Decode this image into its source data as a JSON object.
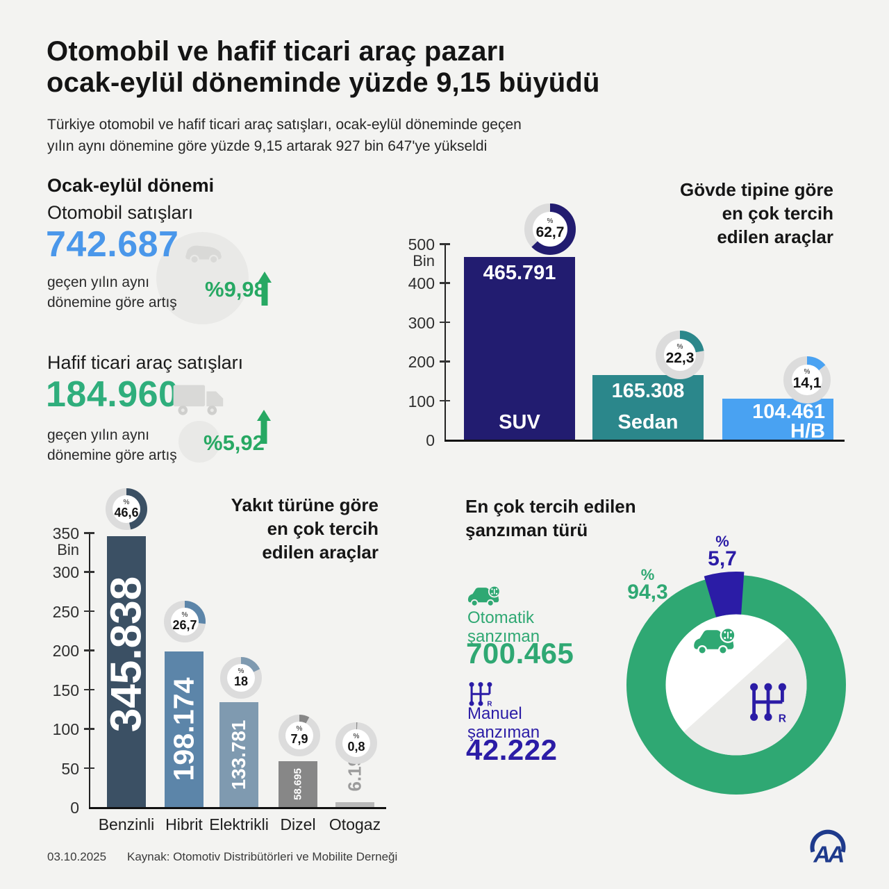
{
  "header": {
    "title_lines": [
      "Otomobil ve hafif ticari araç pazarı",
      "ocak-eylül döneminde yüzde 9,15 büyüdü"
    ],
    "subtitle_lines": [
      "Türkiye otomobil ve hafif ticari araç satışları, ocak-eylül döneminde geçen",
      "yılın aynı dönemine göre yüzde 9,15 artarak 927 bin 647'ye yükseldi"
    ]
  },
  "period": {
    "heading": "Ocak-eylül dönemi",
    "auto": {
      "label": "Otomobil satışları",
      "value": "742.687",
      "value_color": "#4a97ea",
      "note1": "geçen yılın aynı",
      "note2": "dönemine göre artış",
      "change": "%9,98"
    },
    "lcv": {
      "label": "Hafif ticari araç satışları",
      "value": "184.960",
      "value_color": "#2fae7c",
      "note1": "geçen yılın aynı",
      "note2": "dönemine göre artış",
      "change": "%5,92"
    }
  },
  "transmission": {
    "heading_lines": [
      "En çok tercih edilen",
      "şanzıman türü"
    ],
    "automatic": {
      "label1": "Otomatik",
      "label2": "şanzıman",
      "value": "700.465",
      "percent": "94,3",
      "color": "#2fa873"
    },
    "manual": {
      "label1": "Manuel",
      "label2": "şanzıman",
      "value": "42.222",
      "percent": "5,7",
      "color": "#2b1ca6"
    },
    "percent_symbol": "%"
  },
  "footer": {
    "date": "03.10.2025",
    "source": "Kaynak: Otomotiv Distribütörleri ve Mobilite Derneği"
  },
  "chart_data": [
    {
      "type": "bar",
      "title_lines": [
        "Gövde tipine göre",
        "en çok tercih",
        "edilen araçlar"
      ],
      "unit": "Bin",
      "percent_symbol": "%",
      "categories": [
        "SUV",
        "Sedan",
        "H/B"
      ],
      "values": [
        465791,
        165308,
        104461
      ],
      "value_labels": [
        "465.791",
        "165.308",
        "104.461"
      ],
      "percents": [
        62.7,
        22.3,
        14.1
      ],
      "percent_labels": [
        "62,7",
        "22,3",
        "14,1"
      ],
      "colors": [
        "#221c70",
        "#2b878b",
        "#49a2f2"
      ],
      "ylim": [
        0,
        500000
      ],
      "yticks": [
        "0",
        "100",
        "200",
        "300",
        "400",
        "500"
      ]
    },
    {
      "type": "bar",
      "title_lines": [
        "Yakıt türüne göre",
        "en çok tercih",
        "edilen araçlar"
      ],
      "unit": "Bin",
      "percent_symbol": "%",
      "categories": [
        "Benzinli",
        "Hibrit",
        "Elektrikli",
        "Dizel",
        "Otogaz"
      ],
      "values": [
        345838,
        198174,
        133781,
        58695,
        6199
      ],
      "value_labels": [
        "345.838",
        "198.174",
        "133.781",
        "58.695",
        "6.199"
      ],
      "percents": [
        46.6,
        26.7,
        18,
        7.9,
        0.8
      ],
      "percent_labels": [
        "46,6",
        "26,7",
        "18",
        "7,9",
        "0,8"
      ],
      "colors": [
        "#3b5064",
        "#5c85a9",
        "#7f9ab0",
        "#878787",
        "#b9b9b9"
      ],
      "ylim": [
        0,
        350000
      ],
      "yticks": [
        "0",
        "50",
        "100",
        "150",
        "200",
        "250",
        "300",
        "350"
      ]
    },
    {
      "type": "pie",
      "title": "En çok tercih edilen şanzıman türü",
      "slices": [
        {
          "label": "Otomatik şanzıman",
          "value": 700465,
          "percent": 94.3,
          "color": "#2fa873"
        },
        {
          "label": "Manuel şanzıman",
          "value": 42222,
          "percent": 5.7,
          "color": "#2b1ca6"
        }
      ]
    }
  ]
}
